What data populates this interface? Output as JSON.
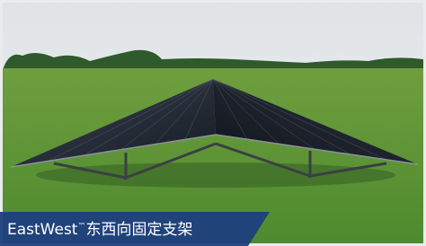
{
  "caption": {
    "brand": "EastWest",
    "trademark": "™",
    "title": "东西向固定支架"
  }
}
